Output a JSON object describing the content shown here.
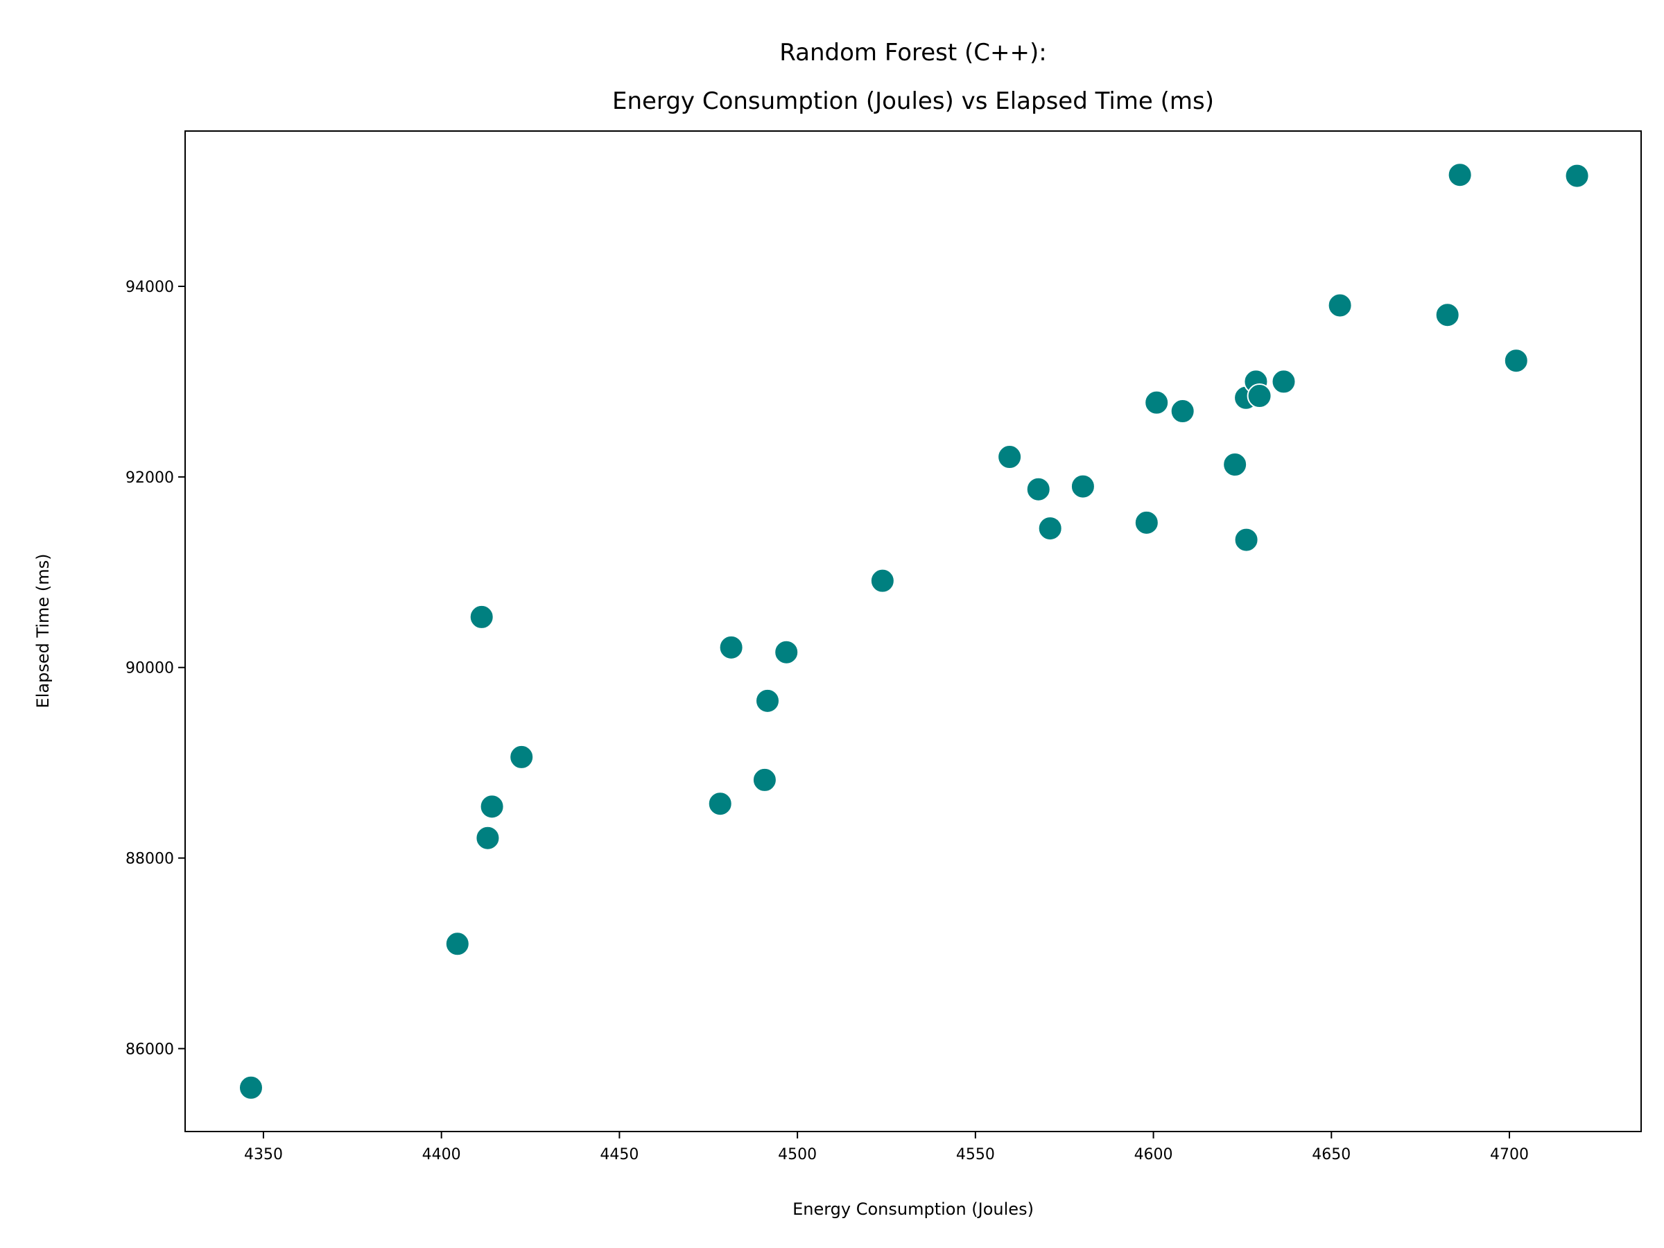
{
  "chart_data": {
    "type": "scatter",
    "title": [
      "Random Forest (C++):",
      "Energy Consumption (Joules) vs Elapsed Time (ms)"
    ],
    "xlabel": "Energy Consumption (Joules)",
    "ylabel": "Elapsed Time (ms)",
    "xlim": [
      4328,
      4737
    ],
    "ylim": [
      85130,
      95630
    ],
    "xticks": [
      4350,
      4400,
      4450,
      4500,
      4550,
      4600,
      4650,
      4700
    ],
    "xtick_labels": [
      "4350",
      "4400",
      "4450",
      "4500",
      "4550",
      "4600",
      "4650",
      "4700"
    ],
    "yticks": [
      86000,
      88000,
      90000,
      92000,
      94000
    ],
    "ytick_labels": [
      "86000",
      "88000",
      "90000",
      "92000",
      "94000"
    ],
    "grid": false,
    "marker_color": "#008080",
    "marker_edge_color": "#ffffff",
    "points": [
      {
        "x": 4346.5,
        "y": 85590
      },
      {
        "x": 4404.5,
        "y": 87100
      },
      {
        "x": 4411.3,
        "y": 90530
      },
      {
        "x": 4413.0,
        "y": 88210
      },
      {
        "x": 4414.2,
        "y": 88540
      },
      {
        "x": 4422.5,
        "y": 89060
      },
      {
        "x": 4478.3,
        "y": 88570
      },
      {
        "x": 4481.4,
        "y": 90210
      },
      {
        "x": 4490.8,
        "y": 88820
      },
      {
        "x": 4491.6,
        "y": 89650
      },
      {
        "x": 4496.9,
        "y": 90160
      },
      {
        "x": 4523.9,
        "y": 90910
      },
      {
        "x": 4559.6,
        "y": 92210
      },
      {
        "x": 4567.7,
        "y": 91870
      },
      {
        "x": 4571.0,
        "y": 91460
      },
      {
        "x": 4580.2,
        "y": 91900
      },
      {
        "x": 4598.1,
        "y": 91520
      },
      {
        "x": 4600.9,
        "y": 92780
      },
      {
        "x": 4608.2,
        "y": 92690
      },
      {
        "x": 4622.9,
        "y": 92130
      },
      {
        "x": 4626.0,
        "y": 92830
      },
      {
        "x": 4626.1,
        "y": 91340
      },
      {
        "x": 4628.8,
        "y": 93000
      },
      {
        "x": 4629.8,
        "y": 92850
      },
      {
        "x": 4636.6,
        "y": 93000
      },
      {
        "x": 4652.4,
        "y": 93800
      },
      {
        "x": 4682.6,
        "y": 93700
      },
      {
        "x": 4686.1,
        "y": 95170
      },
      {
        "x": 4701.9,
        "y": 93220
      },
      {
        "x": 4719.0,
        "y": 95160
      }
    ]
  }
}
